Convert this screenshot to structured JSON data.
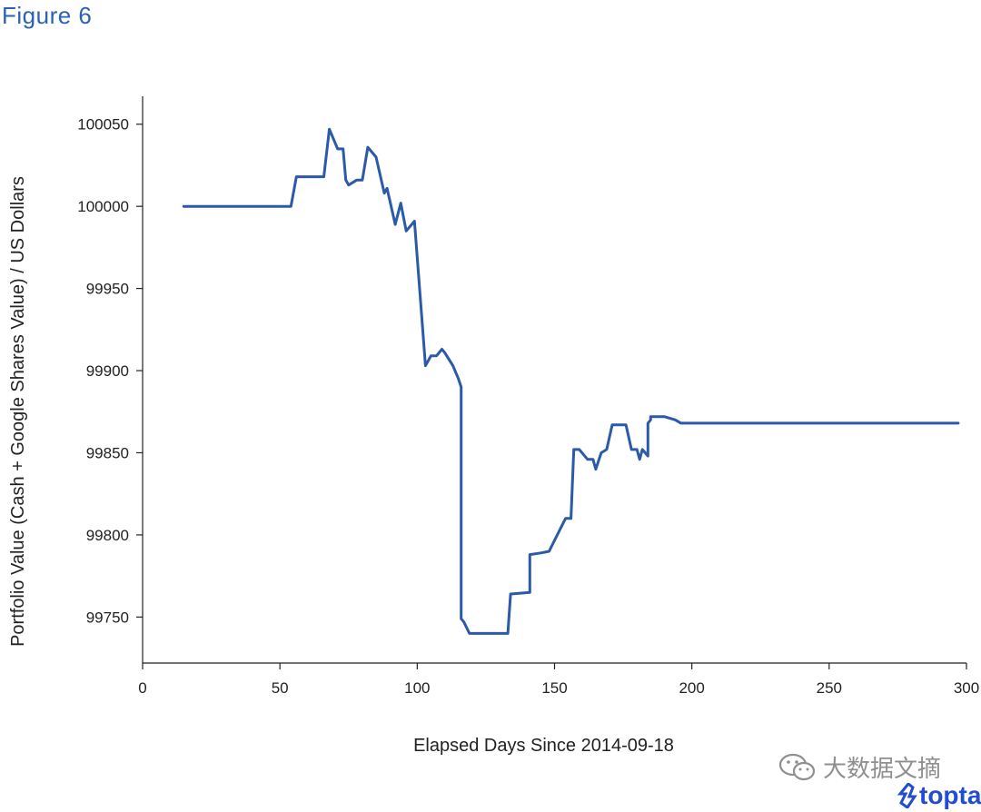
{
  "figure_label": "Figure 6",
  "colors": {
    "figure_label": "#2b62b5",
    "series": "#2b5aa8",
    "axis": "#222222",
    "logo": "#204ecf"
  },
  "watermark": {
    "text": "大数据文摘",
    "icon": "wechat-icon"
  },
  "logo": {
    "text": "toptal",
    "icon": "toptal-mark-icon"
  },
  "chart_data": {
    "type": "line",
    "title": "",
    "xlabel": "Elapsed Days Since 2014-09-18",
    "ylabel": "Portfolio Value (Cash + Google Shares Value) / US Dollars",
    "xlim": [
      0,
      300
    ],
    "ylim": [
      99722,
      100067
    ],
    "xticks": [
      0,
      50,
      100,
      150,
      200,
      250,
      300
    ],
    "yticks": [
      99750,
      99800,
      99850,
      99900,
      99950,
      100000,
      100050
    ],
    "grid": false,
    "legend": "none",
    "series": [
      {
        "x": [
          15,
          54,
          56,
          65,
          66,
          68,
          71,
          73,
          74,
          75,
          78,
          80,
          82,
          85,
          85,
          88,
          89,
          92,
          92,
          94,
          96,
          99,
          99,
          103,
          103,
          105,
          107,
          109,
          110,
          113,
          115,
          115,
          116,
          116,
          117,
          119,
          120,
          122,
          133,
          134,
          141,
          141,
          145,
          148,
          151,
          154,
          156,
          157,
          159,
          162,
          164,
          165,
          167,
          169,
          171,
          176,
          178,
          180,
          181,
          182,
          183,
          184,
          184,
          185,
          185,
          190,
          194,
          196,
          200,
          297
        ],
        "y": [
          100000,
          100000,
          100018,
          100018,
          100018,
          100047,
          100035,
          100035,
          100016,
          100013,
          100016,
          100016,
          100036,
          100030,
          100030,
          100008,
          100011,
          99989,
          99989,
          100002,
          99985,
          99991,
          99991,
          99903,
          99903,
          99909,
          99909,
          99913,
          99911,
          99903,
          99895,
          99895,
          99890,
          99749,
          99747,
          99740,
          99740,
          99740,
          99740,
          99764,
          99765,
          99788,
          99789,
          99790,
          99800,
          99810,
          99810,
          99852,
          99852,
          99846,
          99846,
          99840,
          99850,
          99852,
          99867,
          99867,
          99852,
          99852,
          99846,
          99852,
          99850,
          99848,
          99868,
          99870,
          99872,
          99872,
          99870,
          99868,
          99868,
          99868
        ]
      }
    ]
  }
}
